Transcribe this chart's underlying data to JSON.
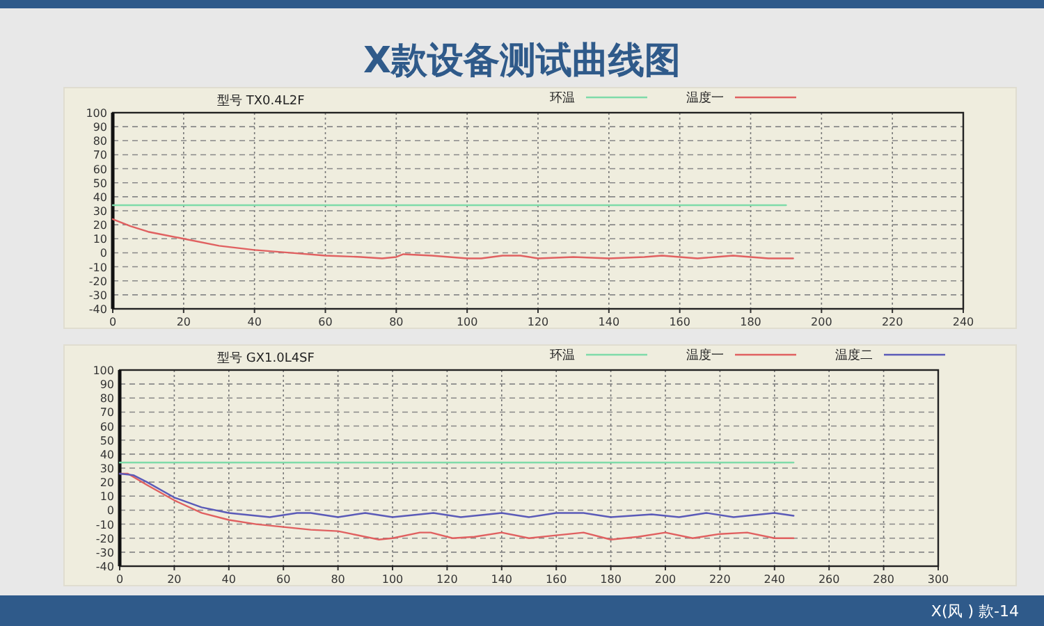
{
  "chart_data": [
    {
      "type": "line",
      "title": "X款设备测试曲线图",
      "subtitle": "型号   TX0.4L2F",
      "xlim": [
        0,
        240
      ],
      "xticks": [
        0,
        20,
        40,
        60,
        80,
        100,
        120,
        140,
        160,
        180,
        200,
        220,
        240
      ],
      "ylim": [
        -40,
        100
      ],
      "yticks": [
        -40,
        -30,
        -20,
        -10,
        0,
        10,
        20,
        30,
        40,
        50,
        60,
        70,
        80,
        90,
        100
      ],
      "grid": true,
      "legend": "top",
      "series": [
        {
          "name": "环温",
          "color": "#7edba9",
          "x": [
            0,
            190
          ],
          "values": [
            34,
            34
          ]
        },
        {
          "name": "温度一",
          "color": "#e06060",
          "x": [
            0,
            5,
            10,
            20,
            30,
            40,
            50,
            60,
            70,
            76,
            80,
            82,
            90,
            100,
            104,
            110,
            115,
            120,
            130,
            140,
            150,
            155,
            160,
            165,
            170,
            175,
            180,
            185,
            192
          ],
          "values": [
            24,
            19,
            15,
            10,
            5,
            2,
            0,
            -2,
            -3,
            -4,
            -3,
            -1,
            -2,
            -4,
            -4,
            -2,
            -2,
            -4,
            -3,
            -4,
            -3,
            -2,
            -3,
            -4,
            -3,
            -2,
            -3,
            -4,
            -4
          ]
        }
      ]
    },
    {
      "type": "line",
      "subtitle": "型号   GX1.0L4SF",
      "xlim": [
        0,
        300
      ],
      "xticks": [
        0,
        20,
        40,
        60,
        80,
        100,
        120,
        140,
        160,
        180,
        200,
        220,
        240,
        260,
        280,
        300
      ],
      "ylim": [
        -40,
        100
      ],
      "yticks": [
        -40,
        -30,
        -20,
        -10,
        0,
        10,
        20,
        30,
        40,
        50,
        60,
        70,
        80,
        90,
        100
      ],
      "grid": true,
      "legend": "top",
      "annotations": [
        "X(风 ) 款-14"
      ],
      "series": [
        {
          "name": "环温",
          "color": "#7edba9",
          "x": [
            0,
            247
          ],
          "values": [
            34,
            34
          ]
        },
        {
          "name": "温度一",
          "color": "#e06060",
          "x": [
            0,
            3,
            10,
            20,
            30,
            40,
            50,
            60,
            70,
            80,
            85,
            95,
            100,
            110,
            114,
            122,
            130,
            140,
            150,
            160,
            170,
            180,
            190,
            200,
            210,
            220,
            230,
            240,
            247
          ],
          "values": [
            26,
            26,
            18,
            7,
            -2,
            -7,
            -10,
            -12,
            -14,
            -15,
            -17,
            -21,
            -20,
            -16,
            -16,
            -20,
            -19,
            -16,
            -20,
            -18,
            -16,
            -21,
            -19,
            -16,
            -20,
            -17,
            -16,
            -20,
            -20
          ]
        },
        {
          "name": "温度二",
          "color": "#5a5ab8",
          "x": [
            0,
            5,
            10,
            20,
            30,
            40,
            55,
            65,
            70,
            80,
            90,
            100,
            115,
            125,
            140,
            150,
            160,
            170,
            180,
            195,
            205,
            215,
            225,
            240,
            247
          ],
          "values": [
            26,
            25,
            20,
            9,
            2,
            -2,
            -5,
            -2,
            -2,
            -5,
            -2,
            -5,
            -2,
            -5,
            -2,
            -5,
            -2,
            -2,
            -5,
            -3,
            -5,
            -2,
            -5,
            -2,
            -4
          ]
        }
      ]
    }
  ]
}
